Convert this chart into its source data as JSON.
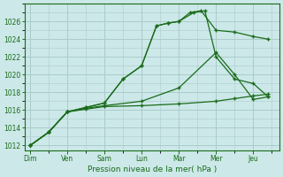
{
  "background_color": "#cce8e8",
  "grid_color": "#aacccc",
  "line_color": "#1a6b1a",
  "xlabel": "Pression niveau de la mer( hPa )",
  "ylim": [
    1011.5,
    1028.0
  ],
  "yticks": [
    1012,
    1014,
    1016,
    1018,
    1020,
    1022,
    1024,
    1026
  ],
  "x_labels": [
    "Dim",
    "Ven",
    "Sam",
    "Lun",
    "Mar",
    "Mer",
    "Jeu"
  ],
  "x_positions": [
    0,
    1,
    2,
    3,
    4,
    5,
    6
  ],
  "xlim": [
    -0.15,
    6.7
  ],
  "lines": [
    {
      "x": [
        0,
        0.5,
        1.0,
        1.5,
        2.0,
        2.5,
        3.0,
        3.4,
        3.7,
        4.0,
        4.3,
        4.6,
        5.0,
        5.5,
        6.0,
        6.4
      ],
      "y": [
        1012,
        1013.5,
        1015.8,
        1016.3,
        1016.8,
        1019.5,
        1021.0,
        1025.5,
        1025.8,
        1026.0,
        1027.0,
        1027.2,
        1025.0,
        1024.8,
        1024.3,
        1024.0
      ]
    },
    {
      "x": [
        0,
        0.5,
        1.0,
        1.5,
        2.0,
        2.5,
        3.0,
        3.4,
        3.7,
        4.0,
        4.4,
        4.7,
        5.0,
        5.5,
        6.0,
        6.4
      ],
      "y": [
        1012,
        1013.5,
        1015.8,
        1016.3,
        1016.8,
        1019.5,
        1021.0,
        1025.5,
        1025.8,
        1026.0,
        1027.0,
        1027.2,
        1022.0,
        1019.5,
        1019.0,
        1017.5
      ]
    },
    {
      "x": [
        0,
        0.5,
        1.0,
        1.5,
        2.0,
        3.0,
        4.0,
        5.0,
        5.5,
        6.0,
        6.4
      ],
      "y": [
        1012,
        1013.5,
        1015.8,
        1016.2,
        1016.5,
        1017.0,
        1018.5,
        1022.5,
        1020.0,
        1017.2,
        1017.5
      ]
    },
    {
      "x": [
        0,
        0.5,
        1.0,
        1.5,
        2.0,
        3.0,
        4.0,
        5.0,
        5.5,
        6.0,
        6.4
      ],
      "y": [
        1012,
        1013.5,
        1015.8,
        1016.1,
        1016.4,
        1016.5,
        1016.7,
        1017.0,
        1017.3,
        1017.6,
        1017.8
      ]
    }
  ]
}
